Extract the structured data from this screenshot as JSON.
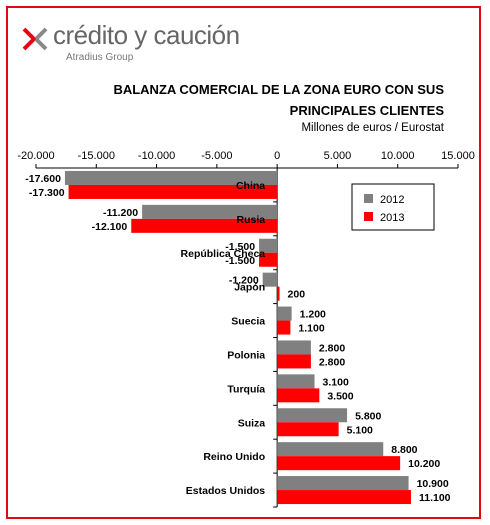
{
  "brand": {
    "name": "crédito y caución",
    "group": "Atradius Group"
  },
  "colors": {
    "series_2012": "#808080",
    "series_2013": "#ff0000",
    "frame": "#e30613"
  },
  "chart_data": {
    "type": "bar",
    "orientation": "horizontal",
    "title": "BALANZA COMERCIAL DE LA ZONA EURO CON SUS PRINCIPALES CLIENTES",
    "subtitle": "Millones de euros / Eurostat",
    "categories": [
      "China",
      "Rusia",
      "República Checa",
      "Japón",
      "Suecia",
      "Polonia",
      "Turquía",
      "Suiza",
      "Reino Unido",
      "Estados Unidos"
    ],
    "series": [
      {
        "name": "2012",
        "values": [
          -17600,
          -11200,
          -1500,
          -1200,
          1200,
          2800,
          3100,
          5800,
          8800,
          10900
        ],
        "labels": [
          "-17.600",
          "-11.200",
          "-1.500",
          "-1.200",
          "1.200",
          "2.800",
          "3.100",
          "5.800",
          "8.800",
          "10.900"
        ]
      },
      {
        "name": "2013",
        "values": [
          -17300,
          -12100,
          -1500,
          200,
          1100,
          2800,
          3500,
          5100,
          10200,
          11100
        ],
        "labels": [
          "-17.300",
          "-12.100",
          "-1.500",
          "200",
          "1.100",
          "2.800",
          "3.500",
          "5.100",
          "10.200",
          "11.100"
        ]
      }
    ],
    "xlim": [
      -20000,
      15000
    ],
    "x_ticks": [
      -20000,
      -15000,
      -10000,
      -5000,
      0,
      5000,
      10000,
      15000
    ],
    "x_tick_labels": [
      "-20.000",
      "-15.000",
      "-10.000",
      "-5.000",
      "0",
      "5.000",
      "10.000",
      "15.000"
    ],
    "axis_position": "top",
    "legend_position": "right",
    "grid": "horizontal-separators"
  }
}
